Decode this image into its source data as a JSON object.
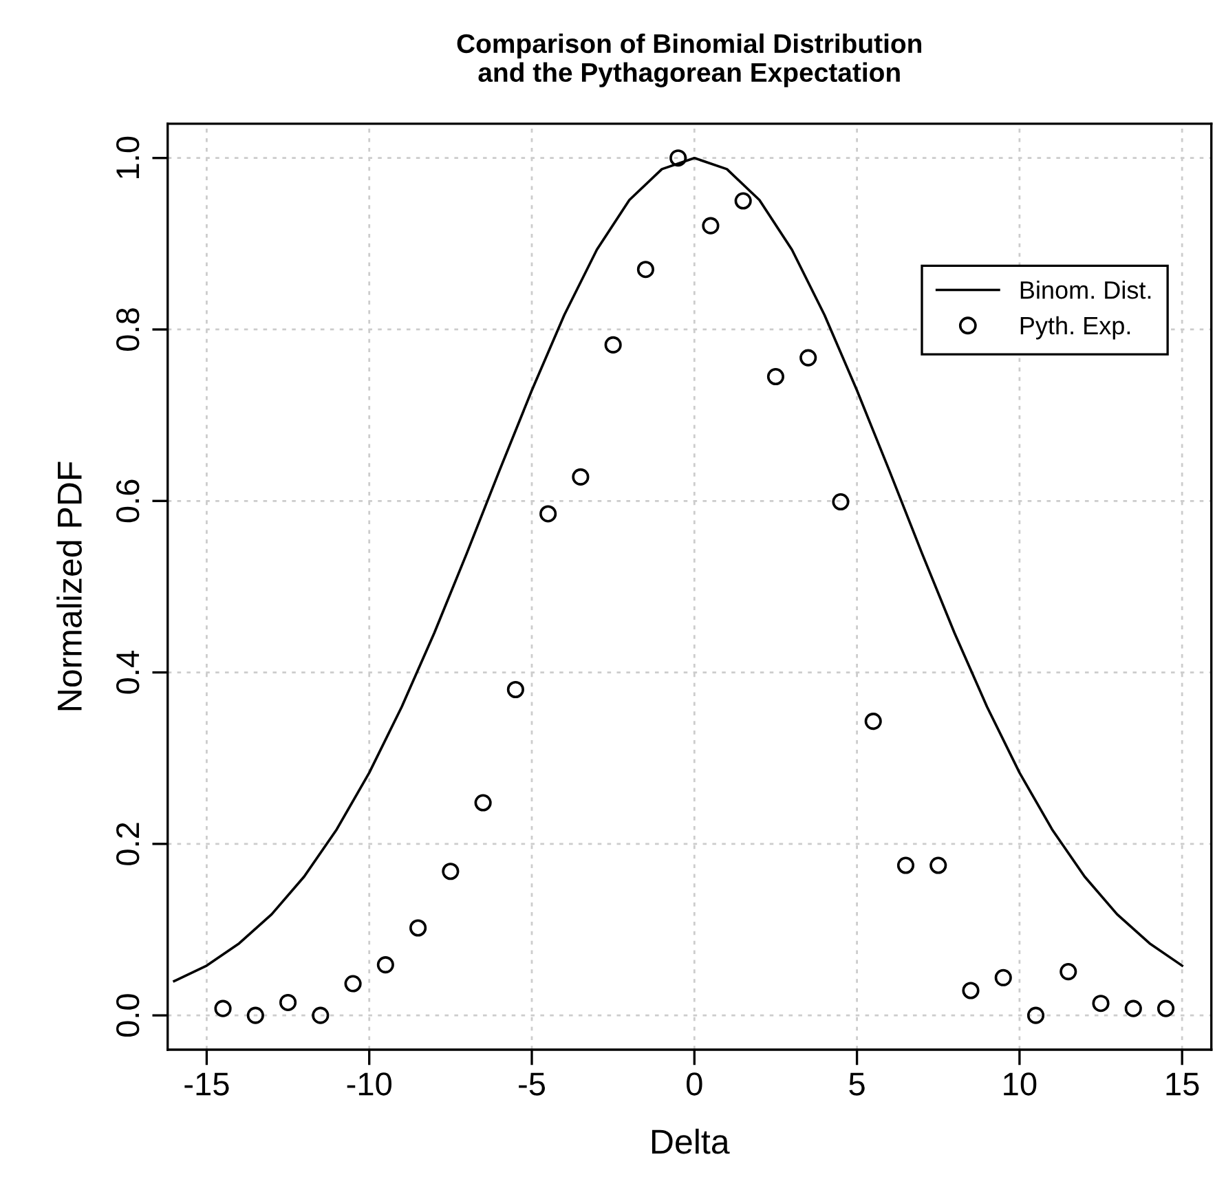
{
  "chart_data": {
    "type": "line",
    "title": "Comparison of Binomial Distribution\nand the Pythagorean Expectation",
    "xlabel": "Delta",
    "ylabel": "Normalized PDF",
    "series": [
      {
        "name": "Binom. Dist.",
        "color": "#000000",
        "line_style": "solid",
        "marker": "none",
        "x": [
          -16,
          -15,
          -14,
          -13,
          -12,
          -11,
          -10,
          -9,
          -8,
          -7,
          -6,
          -5,
          -4,
          -3,
          -2,
          -1,
          0,
          1,
          2,
          3,
          4,
          5,
          6,
          7,
          8,
          9,
          10,
          11,
          12,
          13,
          14,
          15
        ],
        "values": [
          0.04,
          0.058,
          0.084,
          0.118,
          0.162,
          0.217,
          0.283,
          0.36,
          0.446,
          0.539,
          0.635,
          0.729,
          0.817,
          0.893,
          0.951,
          0.987,
          1.0,
          0.987,
          0.951,
          0.893,
          0.817,
          0.729,
          0.635,
          0.539,
          0.446,
          0.36,
          0.283,
          0.217,
          0.162,
          0.118,
          0.084,
          0.058
        ]
      },
      {
        "name": "Pyth. Exp.",
        "type": "scatter",
        "color": "#000000",
        "marker": "circle",
        "x": [
          -14.5,
          -13.5,
          -12.5,
          -11.5,
          -10.5,
          -9.5,
          -8.5,
          -7.5,
          -6.5,
          -5.5,
          -4.5,
          -3.5,
          -2.5,
          -1.5,
          -0.5,
          0.5,
          1.5,
          2.5,
          3.5,
          4.5,
          5.5,
          6.5,
          7.5,
          8.5,
          9.5,
          10.5,
          11.5,
          12.5,
          13.5,
          14.5
        ],
        "values": [
          0.008,
          0.0,
          0.015,
          0.0,
          0.037,
          0.059,
          0.102,
          0.168,
          0.248,
          0.38,
          0.585,
          0.628,
          0.782,
          0.87,
          1.0,
          0.921,
          0.95,
          0.745,
          0.767,
          0.599,
          0.343,
          0.175,
          0.175,
          0.029,
          0.044,
          0.0,
          0.051,
          0.014,
          0.008,
          0.008
        ]
      }
    ],
    "xlim": [
      -16.2,
      15.9
    ],
    "ylim": [
      -0.04,
      1.04
    ],
    "xticks": [
      -15,
      -10,
      -5,
      0,
      5,
      10,
      15
    ],
    "yticks": [
      {
        "value": 0,
        "label": "0.0"
      },
      {
        "value": 0.2,
        "label": "0.2"
      },
      {
        "value": 0.4,
        "label": "0.4"
      },
      {
        "value": 0.6,
        "label": "0.6"
      },
      {
        "value": 0.8,
        "label": "0.8"
      },
      {
        "value": 1.0,
        "label": "1.0"
      }
    ],
    "grid": true,
    "legend": "top right"
  }
}
